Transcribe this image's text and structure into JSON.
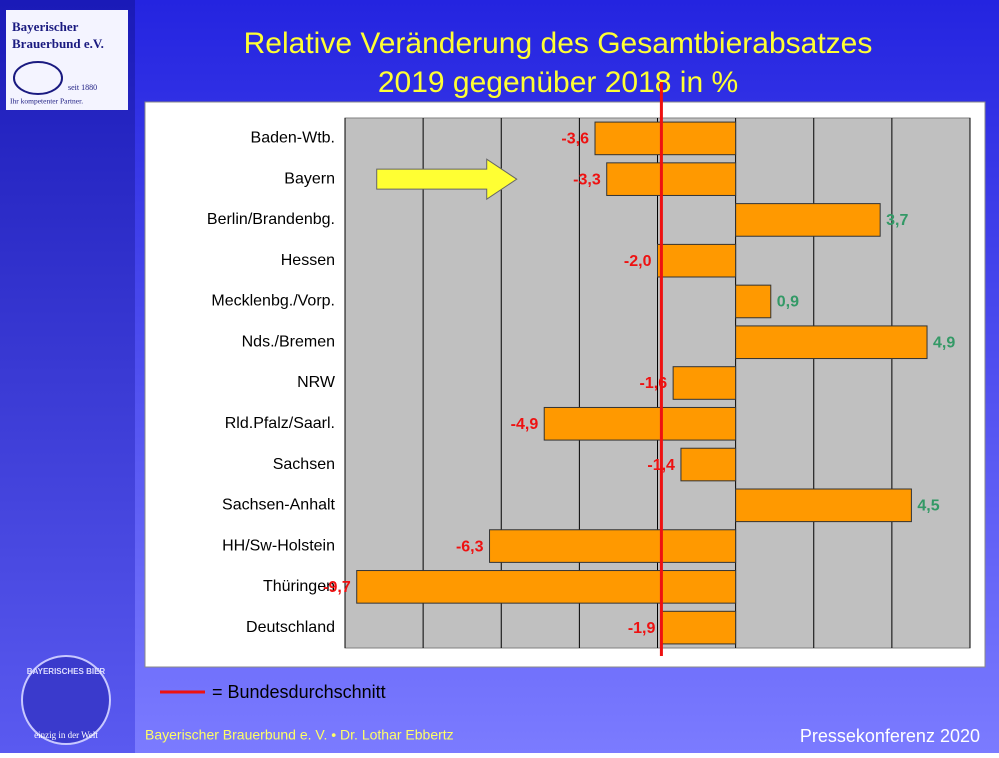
{
  "branding": {
    "logo_name": [
      "Bayerischer",
      "Brauerbund e.V."
    ],
    "logo_since": "seit 1880",
    "logo_claim": "Ihr kompetenter Partner.",
    "seal_top": "BAYERISCHES BIER",
    "seal_bottom": "einzig in der Welt"
  },
  "footer": {
    "left": "Bayerischer Brauerbund e. V. • Dr. Lothar Ebbertz",
    "right": "Pressekonferenz 2020"
  },
  "chart_data": {
    "type": "barh",
    "title": [
      "Relative Veränderung des Gesamtbierabsatzes",
      "2019 gegenüber 2018 in %"
    ],
    "categories": [
      "Baden-Wtb.",
      "Bayern",
      "Berlin/Brandenbg.",
      "Hessen",
      "Mecklenbg./Vorp.",
      "Nds./Bremen",
      "NRW",
      "Rld.Pfalz/Saarl.",
      "Sachsen",
      "Sachsen-Anhalt",
      "HH/Sw-Holstein",
      "Thüringen",
      "Deutschland"
    ],
    "values": [
      -3.6,
      -3.3,
      3.7,
      -2.0,
      0.9,
      4.9,
      -1.6,
      -4.9,
      -1.4,
      4.5,
      -6.3,
      -9.7,
      -1.9
    ],
    "value_labels": [
      "-3,6",
      "-3,3",
      "3,7",
      "-2,0",
      "0,9",
      "4,9",
      "-1,6",
      "-4,9",
      "-1,4",
      "4,5",
      "-6,3",
      "-9,7",
      "-1,9"
    ],
    "color": "#ff9900",
    "label_colors": {
      "negative": "#ee1111",
      "positive": "#339966"
    },
    "xlim": [
      -10,
      6
    ],
    "xticks": [
      -10,
      -8,
      -6,
      -4,
      -2,
      0,
      2,
      4,
      6
    ],
    "grid": true,
    "reference_line": {
      "value": -1.9,
      "label": "= Bundesdurchschnitt",
      "color": "#ee1111"
    },
    "highlight_arrow": "Bayern"
  }
}
